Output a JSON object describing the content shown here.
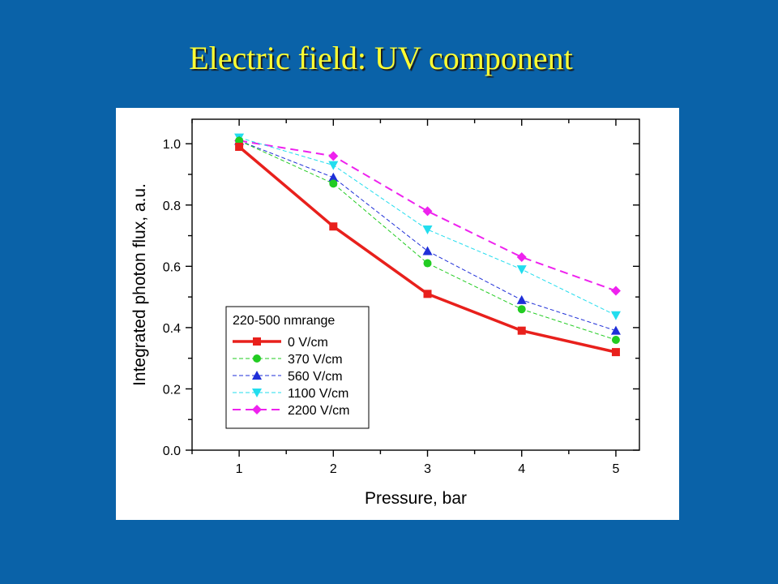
{
  "slide": {
    "title": "Electric field: UV component"
  },
  "chart_data": {
    "type": "line",
    "xlabel": "Pressure, bar",
    "ylabel": "Integrated photon flux, a.u.",
    "xlim": [
      0.5,
      5.25
    ],
    "ylim": [
      0.0,
      1.08
    ],
    "xticks": [
      1,
      2,
      3,
      4,
      5
    ],
    "yticks": [
      0.0,
      0.2,
      0.4,
      0.6,
      0.8,
      1.0
    ],
    "xtick_labels": [
      "1",
      "2",
      "3",
      "4",
      "5"
    ],
    "ytick_labels": [
      "0.0",
      "0.2",
      "0.4",
      "0.6",
      "0.8",
      "1.0"
    ],
    "grid": false,
    "legend_title": "220-500 nmrange",
    "legend_position": "bottom-left",
    "x": [
      1,
      2,
      3,
      4,
      5
    ],
    "series": [
      {
        "name": "0 V/cm",
        "values": [
          0.99,
          0.73,
          0.51,
          0.39,
          0.32
        ],
        "color": "#e8201c",
        "marker": "square",
        "line": "solid"
      },
      {
        "name": "370 V/cm",
        "values": [
          1.01,
          0.87,
          0.61,
          0.46,
          0.36
        ],
        "color": "#22cc22",
        "marker": "circle",
        "line": "dashed"
      },
      {
        "name": "560 V/cm",
        "values": [
          1.01,
          0.89,
          0.65,
          0.49,
          0.39
        ],
        "color": "#1f2fd8",
        "marker": "triangle-up",
        "line": "dashed"
      },
      {
        "name": "1100 V/cm",
        "values": [
          1.02,
          0.93,
          0.72,
          0.59,
          0.44
        ],
        "color": "#22ddee",
        "marker": "triangle-down",
        "line": "dashed"
      },
      {
        "name": "2200 V/cm",
        "values": [
          1.01,
          0.96,
          0.78,
          0.63,
          0.52
        ],
        "color": "#ee22ee",
        "marker": "diamond",
        "line": "dashed"
      }
    ]
  }
}
